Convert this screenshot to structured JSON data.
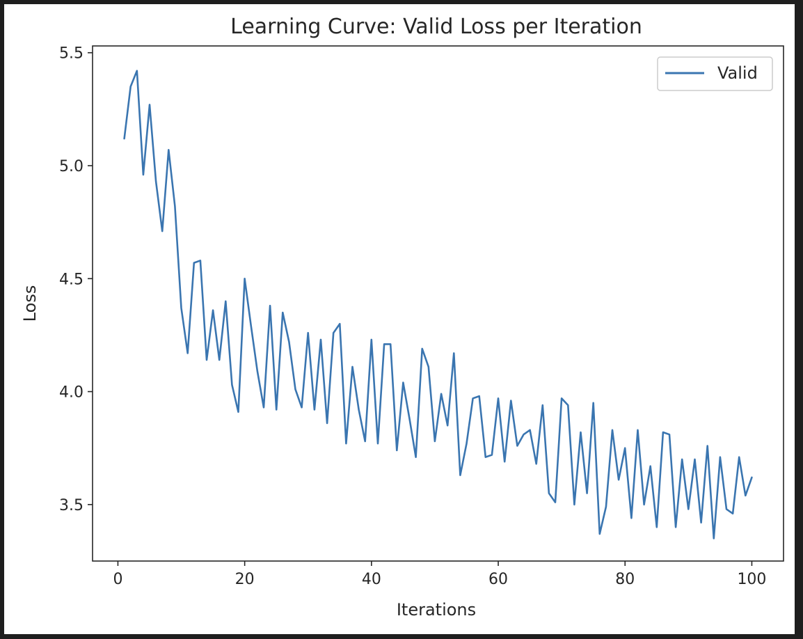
{
  "chart_data": {
    "type": "line",
    "title": "Learning Curve: Valid Loss per Iteration",
    "xlabel": "Iterations",
    "ylabel": "Loss",
    "xlim": [
      -4,
      105
    ],
    "ylim": [
      3.25,
      5.53
    ],
    "xticks": [
      0,
      20,
      40,
      60,
      80,
      100
    ],
    "xtick_labels": [
      "0",
      "20",
      "40",
      "60",
      "80",
      "100"
    ],
    "yticks": [
      3.5,
      4.0,
      4.5,
      5.0,
      5.5
    ],
    "ytick_labels": [
      "3.5",
      "4.0",
      "4.5",
      "5.0",
      "5.5"
    ],
    "grid": false,
    "legend_position": "top-right",
    "series": [
      {
        "name": "Valid",
        "color": "#3a75b0",
        "x": [
          1,
          2,
          3,
          4,
          5,
          6,
          7,
          8,
          9,
          10,
          11,
          12,
          13,
          14,
          15,
          16,
          17,
          18,
          19,
          20,
          21,
          22,
          23,
          24,
          25,
          26,
          27,
          28,
          29,
          30,
          31,
          32,
          33,
          34,
          35,
          36,
          37,
          38,
          39,
          40,
          41,
          42,
          43,
          44,
          45,
          46,
          47,
          48,
          49,
          50,
          51,
          52,
          53,
          54,
          55,
          56,
          57,
          58,
          59,
          60,
          61,
          62,
          63,
          64,
          65,
          66,
          67,
          68,
          69,
          70,
          71,
          72,
          73,
          74,
          75,
          76,
          77,
          78,
          79,
          80,
          81,
          82,
          83,
          84,
          85,
          86,
          87,
          88,
          89,
          90,
          91,
          92,
          93,
          94,
          95,
          96,
          97,
          98,
          99,
          100
        ],
        "values": [
          5.12,
          5.35,
          5.42,
          4.96,
          5.27,
          4.93,
          4.71,
          5.07,
          4.82,
          4.37,
          4.17,
          4.57,
          4.58,
          4.14,
          4.36,
          4.14,
          4.4,
          4.03,
          3.91,
          4.5,
          4.29,
          4.09,
          3.93,
          4.38,
          3.92,
          4.35,
          4.22,
          4.01,
          3.93,
          4.26,
          3.92,
          4.23,
          3.86,
          4.26,
          4.3,
          3.77,
          4.11,
          3.92,
          3.78,
          4.23,
          3.77,
          4.21,
          4.21,
          3.74,
          4.04,
          3.88,
          3.71,
          4.19,
          4.11,
          3.78,
          3.99,
          3.85,
          4.17,
          3.63,
          3.77,
          3.97,
          3.98,
          3.71,
          3.72,
          3.97,
          3.69,
          3.96,
          3.76,
          3.81,
          3.83,
          3.68,
          3.94,
          3.55,
          3.51,
          3.97,
          3.94,
          3.5,
          3.82,
          3.55,
          3.95,
          3.37,
          3.49,
          3.83,
          3.61,
          3.75,
          3.44,
          3.83,
          3.5,
          3.67,
          3.4,
          3.82,
          3.81,
          3.4,
          3.7,
          3.48,
          3.7,
          3.42,
          3.76,
          3.35,
          3.71,
          3.48,
          3.46,
          3.71,
          3.54,
          3.62
        ]
      }
    ]
  }
}
